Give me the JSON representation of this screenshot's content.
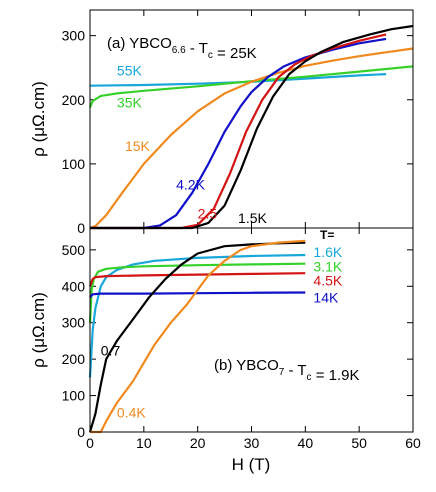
{
  "chart_data": [
    {
      "type": "line",
      "panel_label": "(a)",
      "title_parts": {
        "prefix": "YBCO",
        "sub": "6.6",
        "mid": " - T",
        "sub2": "c",
        "suffix": " = 25K"
      },
      "xlabel": "",
      "ylabel": "ρ (μΩ.cm)",
      "xlim": [
        0,
        60
      ],
      "ylim": [
        0,
        340
      ],
      "x_ticks": [],
      "y_ticks": [
        0,
        100,
        200,
        300
      ],
      "series": [
        {
          "name": "55K",
          "color": "#19a7d9",
          "label_x": 5,
          "label_y": 238,
          "x": [
            0,
            10,
            20,
            30,
            40,
            50,
            55
          ],
          "y": [
            222,
            223,
            225,
            228,
            233,
            238,
            240
          ]
        },
        {
          "name": "35K",
          "color": "#35d12a",
          "label_x": 5,
          "label_y": 188,
          "x": [
            0,
            0.5,
            2,
            5,
            10,
            20,
            30,
            40,
            50,
            60
          ],
          "y": [
            188,
            198,
            206,
            210,
            214,
            221,
            229,
            236,
            244,
            252
          ]
        },
        {
          "name": "15K",
          "color": "#f08a1e",
          "label_x": 6.5,
          "label_y": 120,
          "x": [
            0,
            1,
            3,
            6,
            10,
            15,
            20,
            25,
            30,
            35,
            40,
            45,
            50,
            55,
            60
          ],
          "y": [
            0,
            3,
            20,
            55,
            100,
            145,
            182,
            210,
            228,
            242,
            253,
            261,
            268,
            274,
            280
          ]
        },
        {
          "name": "4.2K",
          "color": "#1010c8",
          "label_x": 16,
          "label_y": 60,
          "x": [
            0,
            10,
            13,
            16,
            19,
            22,
            25,
            28,
            30,
            33,
            36,
            40,
            45,
            50,
            55
          ],
          "y": [
            0,
            0,
            4,
            20,
            55,
            100,
            150,
            190,
            212,
            235,
            252,
            266,
            278,
            288,
            295
          ]
        },
        {
          "name": "2.5",
          "color": "#d41414",
          "label_x": 20,
          "label_y": 15,
          "x": [
            0,
            17,
            20,
            23,
            26,
            29,
            32,
            35,
            38,
            41,
            45,
            50,
            55
          ],
          "y": [
            0,
            0,
            5,
            30,
            85,
            150,
            200,
            235,
            255,
            268,
            280,
            292,
            302
          ]
        },
        {
          "name": "1.5K",
          "color": "#000000",
          "label_x": 27.5,
          "label_y": 8,
          "x": [
            0,
            19,
            22,
            25,
            28,
            31,
            34,
            37,
            40,
            43,
            47,
            52,
            56,
            60
          ],
          "y": [
            0,
            0,
            8,
            35,
            90,
            155,
            205,
            240,
            260,
            275,
            290,
            302,
            310,
            315
          ]
        }
      ]
    },
    {
      "type": "line",
      "panel_label": "(b)",
      "title_parts": {
        "prefix": "YBCO",
        "sub": "7",
        "mid": " - T",
        "sub2": "c",
        "suffix": " = 1.9K"
      },
      "xlabel": "H (T)",
      "ylabel": "ρ (μΩ.cm)",
      "xlim": [
        0,
        60
      ],
      "ylim": [
        0,
        560
      ],
      "x_ticks": [
        0,
        10,
        20,
        30,
        40,
        50,
        60
      ],
      "y_ticks": [
        0,
        100,
        200,
        300,
        400,
        500
      ],
      "legend_header": "T=",
      "series": [
        {
          "name": "1.6K",
          "color": "#19a7d9",
          "label_x": 41.5,
          "label_y": 480,
          "x": [
            0,
            0.5,
            1,
            2,
            3,
            5,
            8,
            12,
            20,
            30,
            40
          ],
          "y": [
            150,
            280,
            340,
            400,
            425,
            445,
            460,
            470,
            478,
            483,
            486
          ]
        },
        {
          "name": "3.1K",
          "color": "#35d12a",
          "label_x": 41.5,
          "label_y": 440,
          "x": [
            0,
            0.3,
            0.7,
            1.5,
            3,
            6,
            10,
            20,
            30,
            40
          ],
          "y": [
            300,
            390,
            420,
            440,
            448,
            452,
            455,
            458,
            460,
            462
          ]
        },
        {
          "name": "4.5K",
          "color": "#d41414",
          "label_x": 41.5,
          "label_y": 402,
          "x": [
            0,
            0.5,
            1,
            3,
            10,
            20,
            30,
            40
          ],
          "y": [
            400,
            420,
            425,
            428,
            430,
            432,
            434,
            436
          ]
        },
        {
          "name": "14K",
          "color": "#1010c8",
          "label_x": 41.5,
          "label_y": 356,
          "x": [
            0,
            0.5,
            2,
            10,
            20,
            30,
            40
          ],
          "y": [
            370,
            378,
            380,
            380,
            381,
            382,
            383
          ]
        },
        {
          "name": "0.7",
          "color": "#000000",
          "label_x": 2,
          "label_y": 210,
          "x": [
            0,
            1,
            2,
            3,
            5,
            8,
            11,
            14,
            17,
            20,
            25,
            30,
            35,
            40
          ],
          "y": [
            0,
            50,
            130,
            200,
            250,
            310,
            370,
            420,
            460,
            490,
            510,
            515,
            518,
            520
          ]
        },
        {
          "name": "0.4K",
          "color": "#f08a1e",
          "label_x": 5,
          "label_y": 40,
          "x": [
            0,
            2,
            3,
            5,
            8,
            10,
            12,
            15,
            18,
            20,
            22,
            25,
            28,
            30,
            35,
            40
          ],
          "y": [
            0,
            0,
            30,
            80,
            140,
            190,
            240,
            300,
            350,
            390,
            430,
            470,
            500,
            510,
            520,
            525
          ]
        }
      ]
    }
  ]
}
